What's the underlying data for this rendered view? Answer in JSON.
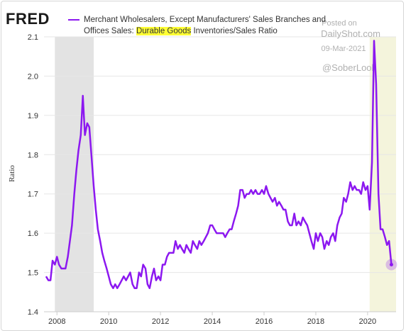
{
  "chart_data": {
    "type": "line",
    "logo": "FRED",
    "ylabel": "Ratio",
    "highlighted_text": "Durable Goods",
    "watermark": [
      "Posted on",
      "DailyShot.com",
      "09-Mar-2021",
      "@SoberLook"
    ],
    "xlim": [
      2007.5,
      2021.1
    ],
    "ylim": [
      1.4,
      2.1
    ],
    "xticks": [
      2008,
      2010,
      2012,
      2014,
      2016,
      2018,
      2020
    ],
    "yticks": [
      1.4,
      1.5,
      1.6,
      1.7,
      1.8,
      1.9,
      {
        "value": 2,
        "label": "2.0"
      },
      2.1
    ],
    "grid": true,
    "shaded_periods": [
      [
        2007.92,
        2009.42
      ],
      [
        2020.08,
        2021.1
      ]
    ],
    "x": [
      2007.58,
      2007.67,
      2007.75,
      2007.83,
      2007.92,
      2008.0,
      2008.08,
      2008.17,
      2008.25,
      2008.33,
      2008.42,
      2008.5,
      2008.58,
      2008.67,
      2008.75,
      2008.83,
      2008.92,
      2009.0,
      2009.08,
      2009.17,
      2009.25,
      2009.33,
      2009.42,
      2009.5,
      2009.58,
      2009.67,
      2009.75,
      2009.83,
      2009.92,
      2010.0,
      2010.08,
      2010.17,
      2010.25,
      2010.33,
      2010.42,
      2010.5,
      2010.58,
      2010.67,
      2010.75,
      2010.83,
      2010.92,
      2011.0,
      2011.08,
      2011.17,
      2011.25,
      2011.33,
      2011.42,
      2011.5,
      2011.58,
      2011.67,
      2011.75,
      2011.83,
      2011.92,
      2012.0,
      2012.08,
      2012.17,
      2012.25,
      2012.33,
      2012.42,
      2012.5,
      2012.58,
      2012.67,
      2012.75,
      2012.83,
      2012.92,
      2013.0,
      2013.08,
      2013.17,
      2013.25,
      2013.33,
      2013.42,
      2013.5,
      2013.58,
      2013.67,
      2013.75,
      2013.83,
      2013.92,
      2014.0,
      2014.08,
      2014.17,
      2014.25,
      2014.33,
      2014.42,
      2014.5,
      2014.58,
      2014.67,
      2014.75,
      2014.83,
      2014.92,
      2015.0,
      2015.08,
      2015.17,
      2015.25,
      2015.33,
      2015.42,
      2015.5,
      2015.58,
      2015.67,
      2015.75,
      2015.83,
      2015.92,
      2016.0,
      2016.08,
      2016.17,
      2016.25,
      2016.33,
      2016.42,
      2016.5,
      2016.58,
      2016.67,
      2016.75,
      2016.83,
      2016.92,
      2017.0,
      2017.08,
      2017.17,
      2017.25,
      2017.33,
      2017.42,
      2017.5,
      2017.58,
      2017.67,
      2017.75,
      2017.83,
      2017.92,
      2018.0,
      2018.08,
      2018.17,
      2018.25,
      2018.33,
      2018.42,
      2018.5,
      2018.58,
      2018.67,
      2018.75,
      2018.83,
      2018.92,
      2019.0,
      2019.08,
      2019.17,
      2019.25,
      2019.33,
      2019.42,
      2019.5,
      2019.58,
      2019.67,
      2019.75,
      2019.83,
      2019.92,
      2020.0,
      2020.08,
      2020.17,
      2020.25,
      2020.33,
      2020.42,
      2020.5,
      2020.58,
      2020.67,
      2020.75,
      2020.83,
      2020.92
    ],
    "series": [
      {
        "name": "Merchant Wholesalers, Except Manufacturers' Sales Branches and Offices Sales: Durable Goods Inventories/Sales Ratio",
        "color": "#8c18f0",
        "values": [
          1.49,
          1.48,
          1.48,
          1.53,
          1.52,
          1.54,
          1.52,
          1.51,
          1.51,
          1.51,
          1.54,
          1.58,
          1.62,
          1.7,
          1.76,
          1.81,
          1.85,
          1.95,
          1.85,
          1.88,
          1.87,
          1.8,
          1.72,
          1.66,
          1.61,
          1.58,
          1.55,
          1.53,
          1.51,
          1.49,
          1.47,
          1.46,
          1.47,
          1.46,
          1.47,
          1.48,
          1.49,
          1.48,
          1.49,
          1.5,
          1.47,
          1.46,
          1.46,
          1.5,
          1.49,
          1.52,
          1.51,
          1.47,
          1.46,
          1.49,
          1.51,
          1.48,
          1.49,
          1.48,
          1.52,
          1.52,
          1.54,
          1.55,
          1.55,
          1.55,
          1.58,
          1.56,
          1.57,
          1.56,
          1.55,
          1.57,
          1.56,
          1.55,
          1.58,
          1.57,
          1.56,
          1.58,
          1.57,
          1.58,
          1.59,
          1.6,
          1.62,
          1.62,
          1.61,
          1.6,
          1.6,
          1.6,
          1.6,
          1.59,
          1.6,
          1.61,
          1.61,
          1.63,
          1.65,
          1.67,
          1.71,
          1.71,
          1.69,
          1.7,
          1.7,
          1.71,
          1.7,
          1.71,
          1.7,
          1.7,
          1.71,
          1.7,
          1.72,
          1.7,
          1.69,
          1.68,
          1.69,
          1.67,
          1.68,
          1.67,
          1.66,
          1.66,
          1.63,
          1.62,
          1.62,
          1.65,
          1.62,
          1.63,
          1.62,
          1.64,
          1.63,
          1.62,
          1.6,
          1.58,
          1.56,
          1.6,
          1.58,
          1.6,
          1.59,
          1.56,
          1.58,
          1.57,
          1.59,
          1.6,
          1.58,
          1.62,
          1.64,
          1.65,
          1.69,
          1.68,
          1.7,
          1.73,
          1.71,
          1.72,
          1.71,
          1.71,
          1.7,
          1.73,
          1.71,
          1.72,
          1.66,
          1.78,
          2.09,
          1.98,
          1.7,
          1.61,
          1.61,
          1.59,
          1.57,
          1.58,
          1.52
        ]
      }
    ]
  }
}
